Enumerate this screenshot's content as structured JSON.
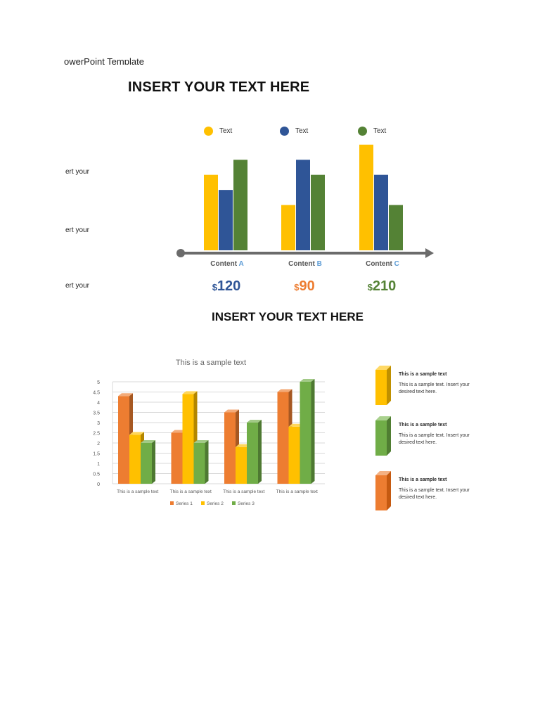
{
  "header_fragment": "owerPoint Template",
  "slide1": {
    "title": "INSERT YOUR TEXT HERE",
    "side_labels": [
      "ert your",
      "ert your",
      "ert your"
    ],
    "legend": [
      {
        "label": "Text",
        "color": "#FFC000"
      },
      {
        "label": "Text",
        "color": "#2F5597"
      },
      {
        "label": "Text",
        "color": "#548235"
      }
    ],
    "groups": [
      {
        "label": "Content",
        "letter": "A",
        "currency": "$",
        "amount": "120",
        "amount_color": "#2F5597"
      },
      {
        "label": "Content",
        "letter": "B",
        "currency": "$",
        "amount": "90",
        "amount_color": "#ED7D31"
      },
      {
        "label": "Content",
        "letter": "C",
        "currency": "$",
        "amount": "210",
        "amount_color": "#548235"
      }
    ]
  },
  "slide2": {
    "title": "INSERT YOUR TEXT HERE",
    "cards": [
      {
        "title": "This is a sample text",
        "desc": "This is a sample text. Insert your desired text here.",
        "color": "#FFC000"
      },
      {
        "title": "This is a sample text",
        "desc": "This is a sample text. Insert your desired text here.",
        "color": "#70AD47"
      },
      {
        "title": "This is a sample text",
        "desc": "This is a sample text. Insert your desired text here.",
        "color": "#ED7D31"
      }
    ]
  },
  "chart_data": [
    {
      "type": "bar",
      "title": "",
      "categories": [
        "Content A",
        "Content B",
        "Content C"
      ],
      "series": [
        {
          "name": "Text",
          "color": "#FFC000",
          "values": [
            5,
            3,
            7
          ]
        },
        {
          "name": "Text",
          "color": "#2F5597",
          "values": [
            4,
            6,
            5
          ]
        },
        {
          "name": "Text",
          "color": "#548235",
          "values": [
            6,
            5,
            3
          ]
        }
      ],
      "ylim": [
        0,
        7.5
      ],
      "y_axis_shown": false,
      "grid": false
    },
    {
      "type": "bar",
      "title": "This is a sample text",
      "categories": [
        "This is a sample text",
        "This is a sample text",
        "This is a sample text",
        "This is a sample text"
      ],
      "series": [
        {
          "name": "Series 1",
          "color": "#ED7D31",
          "values": [
            4.3,
            2.5,
            3.5,
            4.5
          ]
        },
        {
          "name": "Series 2",
          "color": "#FFC000",
          "values": [
            2.4,
            4.4,
            1.8,
            2.8
          ]
        },
        {
          "name": "Series 3",
          "color": "#70AD47",
          "values": [
            2,
            2,
            3,
            5
          ]
        }
      ],
      "yticks": [
        "0",
        "0.5",
        "1",
        "1.5",
        "2",
        "2.5",
        "3",
        "3.5",
        "4",
        "4.5",
        "5"
      ],
      "ylim": [
        0,
        5
      ],
      "grid": true,
      "legend_position": "bottom",
      "style": "3d-column"
    }
  ]
}
